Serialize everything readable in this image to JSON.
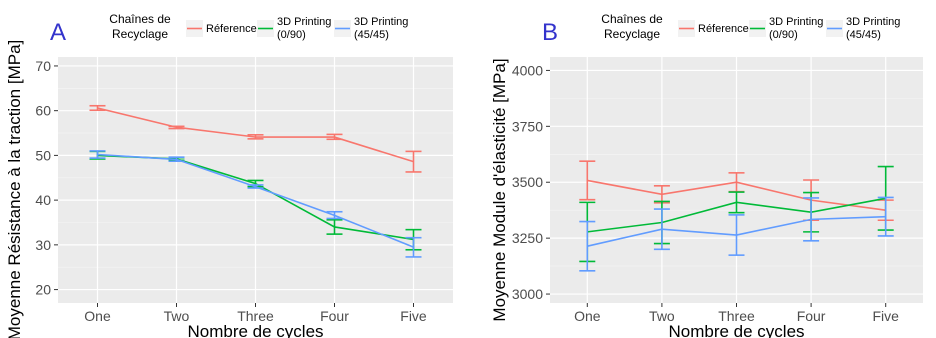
{
  "chart_data": [
    {
      "type": "line",
      "panel_letter": "A",
      "legend_title": "Chaînes de Recyclage",
      "legend_title_lines": [
        "Chaînes de",
        "Recyclage"
      ],
      "categories": [
        "One",
        "Two",
        "Three",
        "Four",
        "Five"
      ],
      "xlabel": "Nombre de cycles",
      "ylabel": "Moyenne Résistance à la traction [MPa]",
      "ylim": [
        17,
        72
      ],
      "yticks": [
        20,
        30,
        40,
        50,
        60,
        70
      ],
      "grid": true,
      "legend_position": "top",
      "series": [
        {
          "name": "Réference",
          "name_lines": [
            "Réference"
          ],
          "color": "#F8766D",
          "values": [
            60.6,
            56.3,
            54.1,
            54.1,
            48.6
          ],
          "err_low": [
            60.1,
            56.0,
            53.7,
            53.6,
            46.3
          ],
          "err_high": [
            61.1,
            56.5,
            54.6,
            54.7,
            50.9
          ]
        },
        {
          "name": "3D Printing (0/90)",
          "name_lines": [
            "3D Printing",
            "(0/90)"
          ],
          "color": "#00BA38",
          "values": [
            50.0,
            49.2,
            43.7,
            34.0,
            31.2
          ],
          "err_low": [
            49.2,
            48.9,
            43.0,
            32.4,
            28.9
          ],
          "err_high": [
            50.9,
            49.5,
            44.4,
            35.6,
            33.4
          ]
        },
        {
          "name": "3D Printing (45/45)",
          "name_lines": [
            "3D Printing",
            "(45/45)"
          ],
          "color": "#619CFF",
          "values": [
            50.2,
            49.1,
            43.0,
            36.6,
            29.5
          ],
          "err_low": [
            49.4,
            48.7,
            42.7,
            35.9,
            27.3
          ],
          "err_high": [
            51.0,
            49.6,
            43.4,
            37.4,
            31.6
          ]
        }
      ]
    },
    {
      "type": "line",
      "panel_letter": "B",
      "legend_title": "Chaînes de Recyclage",
      "legend_title_lines": [
        "Chaînes de",
        "Recyclage"
      ],
      "categories": [
        "One",
        "Two",
        "Three",
        "Four",
        "Five"
      ],
      "xlabel": "Nombre de cycles",
      "ylabel": "Moyenne Module d'élasticité [MPa]",
      "ylim": [
        2960,
        4060
      ],
      "yticks": [
        3000,
        3250,
        3500,
        3750,
        4000
      ],
      "grid": true,
      "legend_position": "top",
      "series": [
        {
          "name": "Réference",
          "name_lines": [
            "Réference"
          ],
          "color": "#F8766D",
          "values": [
            3508,
            3446,
            3500,
            3420,
            3375
          ],
          "err_low": [
            3422,
            3408,
            3458,
            3330,
            3330
          ],
          "err_high": [
            3594,
            3484,
            3542,
            3510,
            3420
          ]
        },
        {
          "name": "3D Printing (0/90)",
          "name_lines": [
            "3D Printing",
            "(0/90)"
          ],
          "color": "#00BA38",
          "values": [
            3278,
            3320,
            3410,
            3366,
            3428
          ],
          "err_low": [
            3146,
            3226,
            3364,
            3278,
            3286
          ],
          "err_high": [
            3410,
            3414,
            3456,
            3454,
            3570
          ]
        },
        {
          "name": "3D Printing (45/45)",
          "name_lines": [
            "3D Printing",
            "(45/45)"
          ],
          "color": "#619CFF",
          "values": [
            3214,
            3290,
            3264,
            3334,
            3346
          ],
          "err_low": [
            3104,
            3200,
            3174,
            3238,
            3260
          ],
          "err_high": [
            3324,
            3380,
            3354,
            3430,
            3432
          ]
        }
      ]
    }
  ]
}
